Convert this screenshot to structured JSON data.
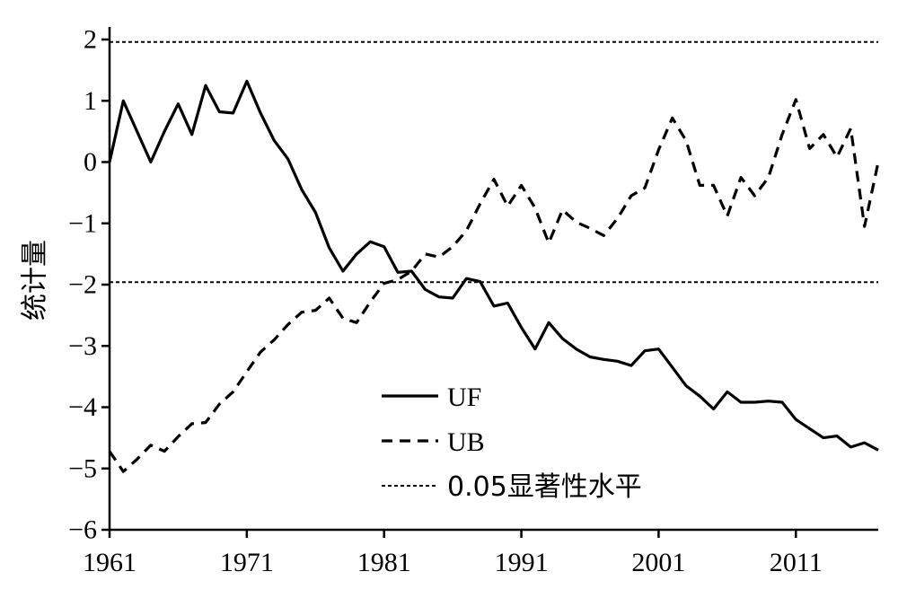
{
  "chart_data": {
    "type": "line",
    "ylabel": "统计量",
    "xlim": [
      1961,
      2017
    ],
    "ylim": [
      -6,
      2.3
    ],
    "x_ticks": [
      1961,
      1971,
      1981,
      1991,
      2001,
      2011
    ],
    "y_ticks": [
      2,
      1,
      0,
      -1,
      -2,
      -3,
      -4,
      -5,
      -6
    ],
    "y_tick_labels": [
      "2",
      "1",
      "0",
      "−1",
      "−2",
      "−3",
      "−4",
      "−5",
      "−6"
    ],
    "grid": false,
    "legend_position": "bottom-center",
    "series": [
      {
        "name": "UF",
        "style": "solid",
        "x": [
          1961,
          1962,
          1963,
          1964,
          1965,
          1966,
          1967,
          1968,
          1969,
          1970,
          1971,
          1972,
          1973,
          1974,
          1975,
          1976,
          1977,
          1978,
          1979,
          1980,
          1981,
          1982,
          1983,
          1984,
          1985,
          1986,
          1987,
          1988,
          1989,
          1990,
          1991,
          1992,
          1993,
          1994,
          1995,
          1996,
          1997,
          1998,
          1999,
          2000,
          2001,
          2002,
          2003,
          2004,
          2005,
          2006,
          2007,
          2008,
          2009,
          2010,
          2011,
          2012,
          2013,
          2014,
          2015,
          2016,
          2017
        ],
        "y": [
          0,
          1.0,
          0.5,
          0,
          0.5,
          0.95,
          0.45,
          1.25,
          0.82,
          0.8,
          1.32,
          0.8,
          0.35,
          0.05,
          -0.45,
          -0.82,
          -1.4,
          -1.78,
          -1.5,
          -1.3,
          -1.38,
          -1.8,
          -1.78,
          -2.08,
          -2.2,
          -2.22,
          -1.9,
          -1.95,
          -2.35,
          -2.3,
          -2.7,
          -3.05,
          -2.62,
          -2.88,
          -3.05,
          -3.18,
          -3.22,
          -3.25,
          -3.32,
          -3.08,
          -3.05,
          -3.35,
          -3.65,
          -3.82,
          -4.03,
          -3.75,
          -3.92,
          -3.92,
          -3.9,
          -3.92,
          -4.2,
          -4.35,
          -4.5,
          -4.47,
          -4.65,
          -4.58,
          -4.7
        ]
      },
      {
        "name": "UB",
        "style": "dashed",
        "x": [
          1961,
          1962,
          1963,
          1964,
          1965,
          1966,
          1967,
          1968,
          1969,
          1970,
          1971,
          1972,
          1973,
          1974,
          1975,
          1976,
          1977,
          1978,
          1979,
          1980,
          1981,
          1982,
          1983,
          1984,
          1985,
          1986,
          1987,
          1988,
          1989,
          1990,
          1991,
          1992,
          1993,
          1994,
          1995,
          1996,
          1997,
          1998,
          1999,
          2000,
          2001,
          2002,
          2003,
          2004,
          2005,
          2006,
          2007,
          2008,
          2009,
          2010,
          2011,
          2012,
          2013,
          2014,
          2015,
          2016,
          2017
        ],
        "y": [
          -4.72,
          -5.05,
          -4.85,
          -4.62,
          -4.72,
          -4.48,
          -4.27,
          -4.25,
          -3.95,
          -3.75,
          -3.42,
          -3.1,
          -2.9,
          -2.65,
          -2.45,
          -2.42,
          -2.22,
          -2.55,
          -2.62,
          -2.28,
          -1.98,
          -1.92,
          -1.78,
          -1.5,
          -1.55,
          -1.38,
          -1.12,
          -0.68,
          -0.28,
          -0.72,
          -0.38,
          -0.75,
          -1.32,
          -0.78,
          -0.98,
          -1.08,
          -1.2,
          -0.92,
          -0.55,
          -0.42,
          0.2,
          0.72,
          0.35,
          -0.38,
          -0.38,
          -0.88,
          -0.25,
          -0.55,
          -0.25,
          0.45,
          1.02,
          0.22,
          0.45,
          0.08,
          0.55,
          -1.05,
          0
        ]
      }
    ],
    "reference_lines": [
      {
        "name": "0.05显著性水平",
        "style": "dotted",
        "values": [
          1.96,
          -1.96
        ]
      }
    ]
  }
}
